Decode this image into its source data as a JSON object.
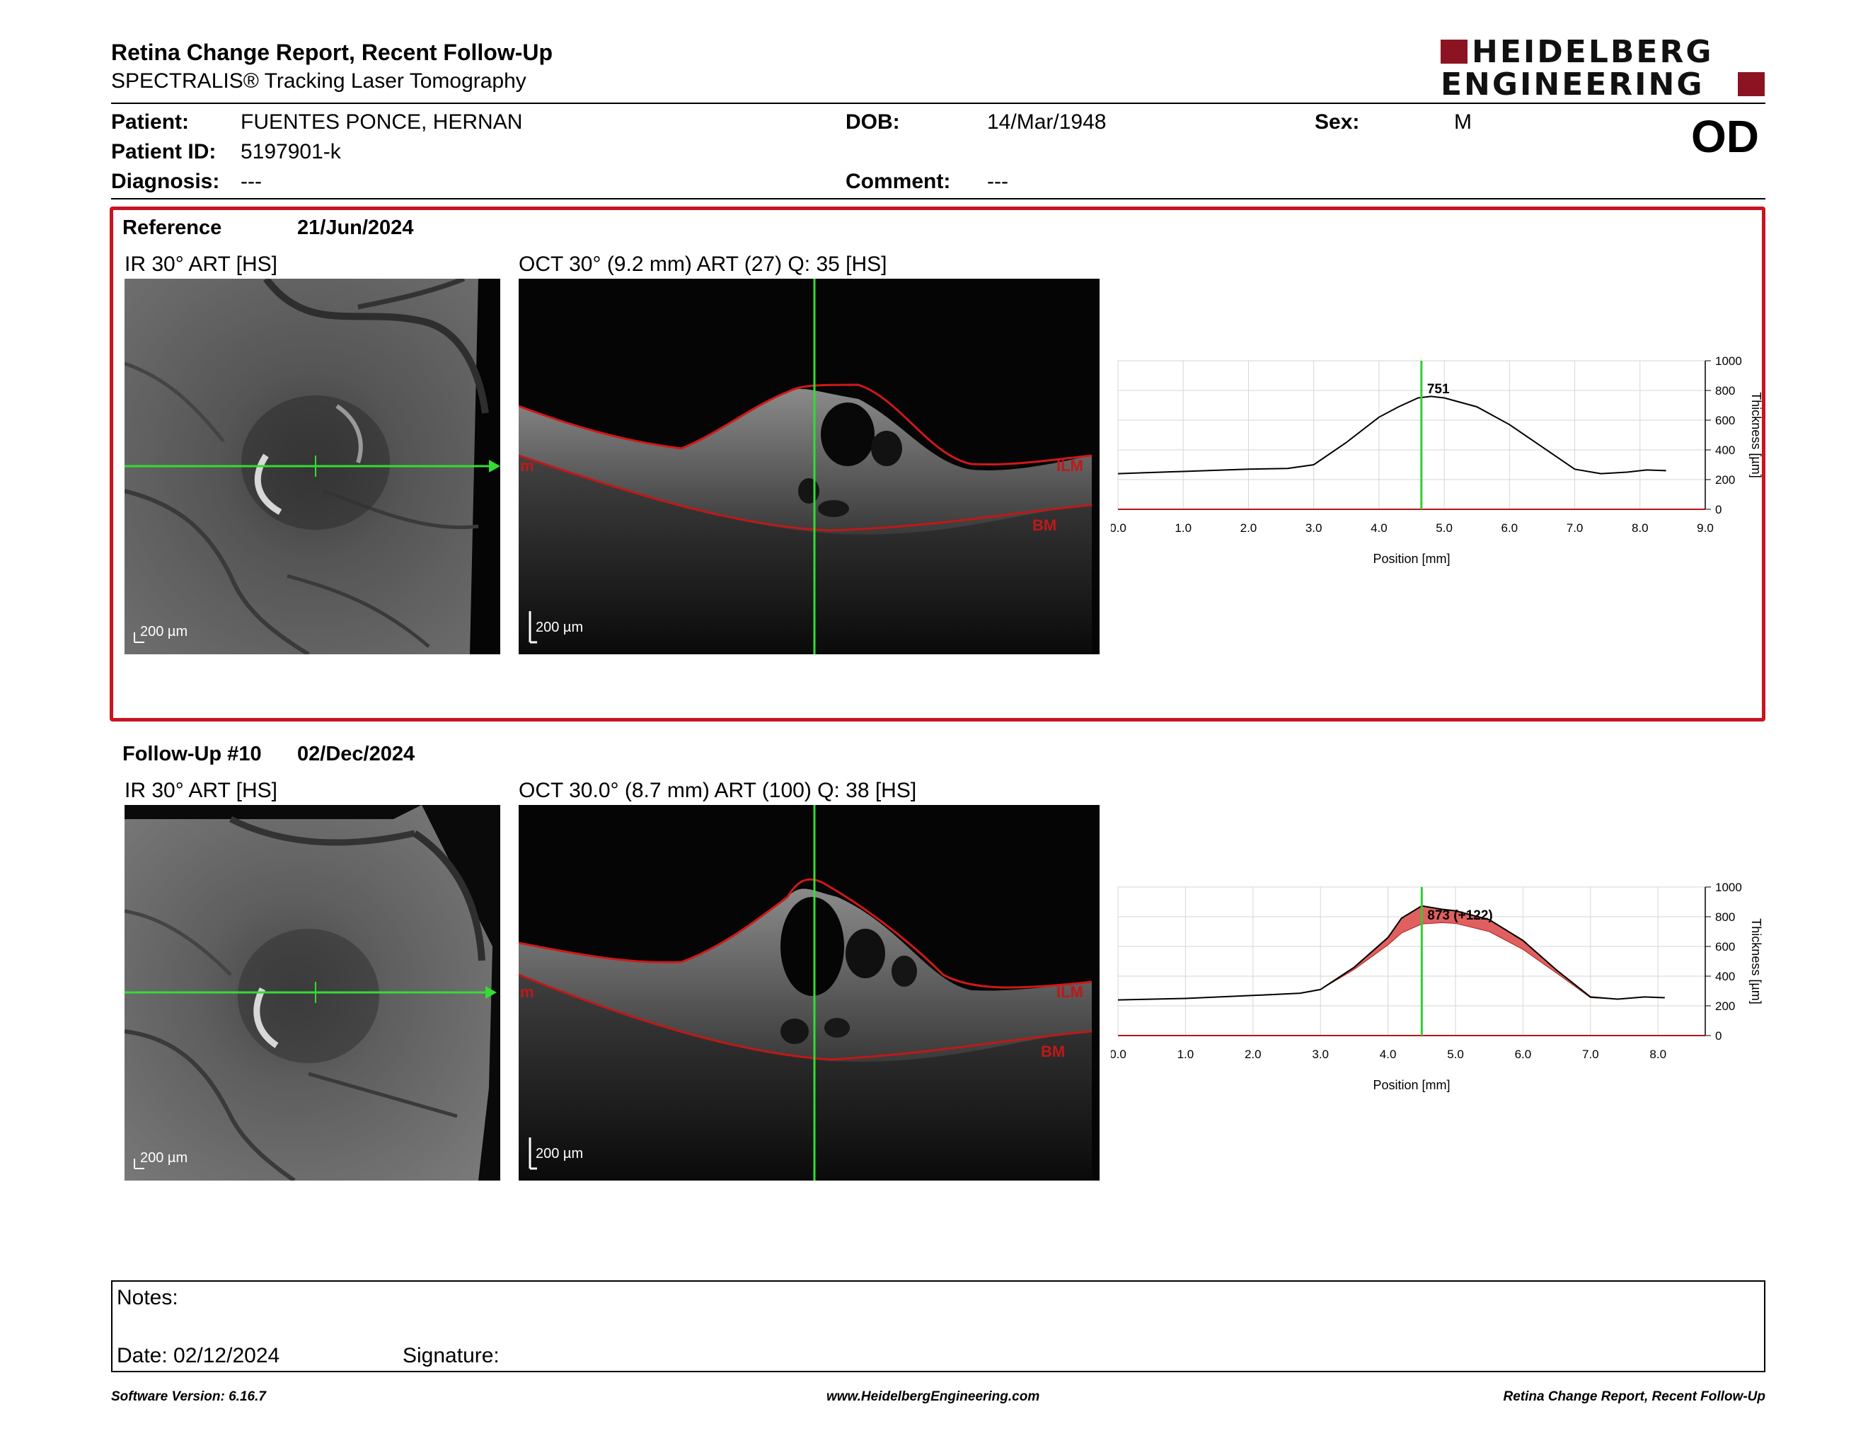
{
  "header": {
    "title": "Retina Change Report, Recent Follow-Up",
    "subtitle": "SPECTRALIS® Tracking Laser Tomography",
    "logo_line1": "HEIDELBERG",
    "logo_line2": "ENGINEERING"
  },
  "patient": {
    "patient_label": "Patient:",
    "patient_value": "FUENTES PONCE, HERNAN",
    "id_label": "Patient ID:",
    "id_value": "5197901-k",
    "diagnosis_label": "Diagnosis:",
    "diagnosis_value": "---",
    "dob_label": "DOB:",
    "dob_value": "14/Mar/1948",
    "comment_label": "Comment:",
    "comment_value": "---",
    "sex_label": "Sex:",
    "sex_value": "M",
    "eye": "OD"
  },
  "reference": {
    "label": "Reference",
    "date": "21/Jun/2024",
    "ir_label": "IR 30° ART [HS]",
    "oct_label": "OCT 30° (9.2 mm) ART (27) Q: 35 [HS]",
    "scale": "200 µm",
    "ilm": "ILM",
    "bm": "BM",
    "edge_label": "m"
  },
  "followup": {
    "label": "Follow-Up #10",
    "date": "02/Dec/2024",
    "ir_label": "IR 30° ART [HS]",
    "oct_label": "OCT 30.0° (8.7 mm) ART (100) Q: 38 [HS]",
    "scale": "200 µm",
    "ilm": "ILM",
    "bm": "BM",
    "edge_label": "m"
  },
  "chart_data": [
    {
      "type": "line",
      "xlabel": "Position [mm]",
      "ylabel": "Thickness [µm]",
      "xlim": [
        0,
        9.0
      ],
      "ylim": [
        0,
        1000
      ],
      "xticks": [
        "0.0",
        "1.0",
        "2.0",
        "3.0",
        "4.0",
        "5.0",
        "6.0",
        "7.0",
        "8.0",
        "9.0"
      ],
      "yticks": [
        "0",
        "200",
        "400",
        "600",
        "800",
        "1000"
      ],
      "grid": true,
      "marker_x": 4.65,
      "marker_label": "751",
      "x": [
        0.0,
        1.0,
        2.0,
        2.6,
        3.0,
        3.5,
        4.0,
        4.3,
        4.6,
        4.8,
        5.0,
        5.5,
        6.0,
        6.5,
        7.0,
        7.4,
        7.8,
        8.1,
        8.4
      ],
      "y": [
        240,
        255,
        270,
        275,
        300,
        450,
        620,
        690,
        750,
        760,
        750,
        690,
        570,
        420,
        270,
        240,
        250,
        265,
        260
      ]
    },
    {
      "type": "line",
      "xlabel": "Position [mm]",
      "ylabel": "Thickness [µm]",
      "xlim": [
        0,
        8.7
      ],
      "ylim": [
        0,
        1000
      ],
      "xticks": [
        "0.0",
        "1.0",
        "2.0",
        "3.0",
        "4.0",
        "5.0",
        "6.0",
        "7.0",
        "8.0"
      ],
      "yticks": [
        "0",
        "200",
        "400",
        "600",
        "800",
        "1000"
      ],
      "grid": true,
      "marker_x": 4.5,
      "marker_label": "873 (+122)",
      "x": [
        0.0,
        1.0,
        2.0,
        2.7,
        3.0,
        3.5,
        4.0,
        4.2,
        4.5,
        4.8,
        5.0,
        5.5,
        6.0,
        6.5,
        7.0,
        7.4,
        7.8,
        8.1
      ],
      "y": [
        240,
        250,
        270,
        285,
        310,
        460,
        660,
        790,
        873,
        850,
        840,
        780,
        640,
        440,
        260,
        245,
        260,
        255
      ],
      "ref_y": [
        240,
        250,
        270,
        285,
        310,
        445,
        610,
        690,
        751,
        760,
        755,
        700,
        580,
        420,
        255,
        245,
        258,
        255
      ],
      "diff_color": "#e06060"
    }
  ],
  "notes": {
    "label": "Notes:",
    "date": "Date: 02/12/2024",
    "signature": "Signature:"
  },
  "footer": {
    "left": "Software Version: 6.16.7",
    "center": "www.HeidelbergEngineering.com",
    "right": "Retina Change Report, Recent Follow-Up"
  }
}
